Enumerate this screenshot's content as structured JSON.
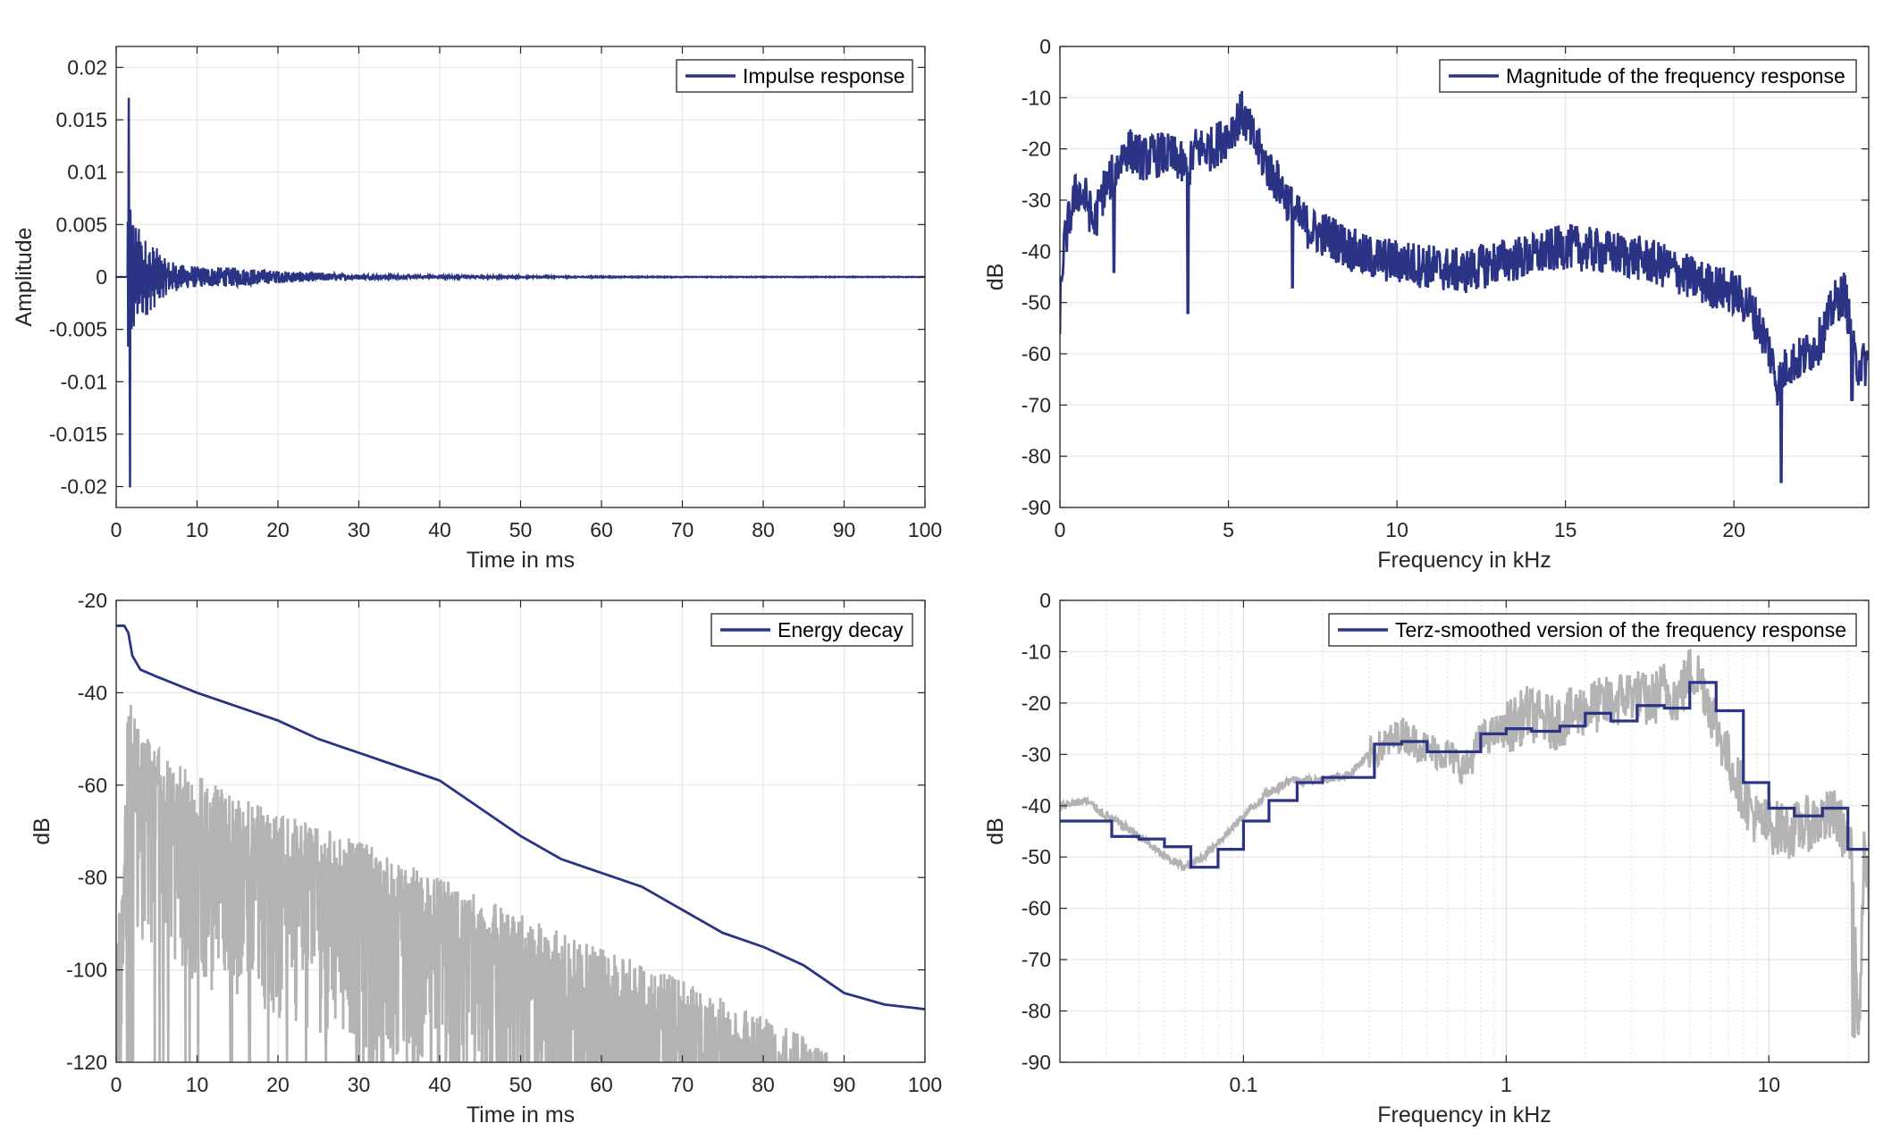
{
  "colors": {
    "main": "#2b3385",
    "gray": "#b3b3b3",
    "grid": "#e6e6e6",
    "axis": "#262626"
  },
  "chart_data": [
    {
      "type": "line",
      "xlabel": "Time in ms",
      "ylabel": "Amplitude",
      "xlim": [
        0,
        100
      ],
      "ylim": [
        -0.022,
        0.022
      ],
      "xticks": [
        0,
        10,
        20,
        30,
        40,
        50,
        60,
        70,
        80,
        90,
        100
      ],
      "yticks": [
        0.02,
        0.015,
        0.01,
        0.005,
        0,
        -0.005,
        -0.01,
        -0.015,
        -0.02
      ],
      "grid": true,
      "legend_position": "top-right",
      "series": [
        {
          "name": "Impulse response",
          "color": "#2b3385",
          "peaks_envelope": {
            "x": [
              1.5,
              1.8,
              2.2,
              3.0,
              4.0,
              5.0,
              6.0,
              8.0,
              10.0,
              15.0,
              20.0,
              25.0,
              30.0,
              40.0,
              50.0,
              70.0,
              100.0
            ],
            "y": [
              0.017,
              0.009,
              0.006,
              0.0045,
              0.0035,
              0.0028,
              0.0018,
              0.0012,
              0.001,
              0.0009,
              0.0006,
              0.0004,
              0.00025,
              0.00012,
              6e-05,
              3e-05,
              2e-05
            ]
          },
          "min_value": -0.02,
          "max_value": 0.017
        }
      ]
    },
    {
      "type": "line",
      "xlabel": "Frequency in kHz",
      "ylabel": "dB",
      "xlim": [
        0,
        24
      ],
      "ylim": [
        -90,
        0
      ],
      "xticks": [
        0,
        5,
        10,
        15,
        20
      ],
      "yticks": [
        0,
        -10,
        -20,
        -30,
        -40,
        -50,
        -60,
        -70,
        -80,
        -90
      ],
      "grid": true,
      "legend_position": "top-right",
      "series": [
        {
          "name": "Magnitude of the frequency response",
          "color": "#2b3385",
          "x": [
            0,
            0.1,
            0.3,
            0.5,
            0.8,
            1.0,
            1.3,
            1.6,
            1.8,
            2.0,
            2.5,
            3.0,
            3.5,
            3.8,
            4.0,
            4.5,
            5.0,
            5.4,
            5.8,
            6.2,
            6.6,
            7.0,
            7.5,
            8.0,
            9.0,
            10.0,
            11.0,
            12.0,
            13.0,
            14.0,
            15.0,
            16.0,
            17.0,
            18.0,
            19.0,
            20.0,
            20.5,
            21.0,
            21.3,
            21.6,
            22.0,
            22.5,
            23.0,
            23.3,
            23.6,
            24.0
          ],
          "y": [
            -52,
            -40,
            -33,
            -28,
            -30,
            -35,
            -28,
            -25,
            -22,
            -20,
            -22,
            -21,
            -22,
            -25,
            -20,
            -20,
            -17,
            -13,
            -19,
            -24,
            -28,
            -33,
            -36,
            -37,
            -41,
            -42,
            -43,
            -44,
            -42,
            -41,
            -39,
            -40,
            -41,
            -43,
            -46,
            -48,
            -51,
            -58,
            -66,
            -62,
            -61,
            -58,
            -50,
            -48,
            -62,
            -62
          ],
          "dips": [
            {
              "x": 3.8,
              "y": -52
            },
            {
              "x": 21.4,
              "y": -85
            },
            {
              "x": 23.5,
              "y": -69
            },
            {
              "x": 6.9,
              "y": -47
            },
            {
              "x": 1.6,
              "y": -44
            }
          ]
        }
      ]
    },
    {
      "type": "line",
      "xlabel": "Time in ms",
      "ylabel": "dB",
      "xlim": [
        0,
        100
      ],
      "ylim": [
        -120,
        -20
      ],
      "xticks": [
        0,
        10,
        20,
        30,
        40,
        50,
        60,
        70,
        80,
        90,
        100
      ],
      "yticks": [
        -20,
        -40,
        -60,
        -80,
        -100,
        -120
      ],
      "grid": true,
      "legend_position": "top-right",
      "series": [
        {
          "name": "Energy decay",
          "color": "#2b3385",
          "x": [
            0,
            1,
            1.5,
            2,
            3,
            5,
            10,
            15,
            20,
            25,
            30,
            35,
            40,
            45,
            50,
            55,
            60,
            65,
            70,
            75,
            80,
            85,
            90,
            95,
            100
          ],
          "y": [
            -25.5,
            -25.5,
            -27,
            -32,
            -35,
            -36.5,
            -40,
            -43,
            -46,
            -50,
            -53,
            -56,
            -59,
            -65,
            -71,
            -76,
            -79,
            -82,
            -87,
            -92,
            -95,
            -99,
            -105,
            -107.5,
            -108.5
          ]
        },
        {
          "color": "#b3b3b3",
          "envelope_top": {
            "x": [
              0,
              1,
              1.5,
              2,
              3,
              5,
              10,
              20,
              30,
              40,
              50,
              60,
              70,
              80,
              88
            ],
            "y": [
              -98,
              -70,
              -34,
              -42,
              -48,
              -52,
              -58,
              -66,
              -72,
              -80,
              -88,
              -95,
              -102,
              -110,
              -117
            ]
          },
          "floor": -120,
          "end_ms": 88
        }
      ]
    },
    {
      "type": "line",
      "xlabel": "Frequency in kHz",
      "ylabel": "dB",
      "xscale": "log",
      "xlim": [
        0.02,
        24
      ],
      "ylim": [
        -90,
        0
      ],
      "xticks": [
        0.1,
        1,
        10
      ],
      "xticklabels": [
        "0.1",
        "1",
        "10"
      ],
      "yticks": [
        0,
        -10,
        -20,
        -30,
        -40,
        -50,
        -60,
        -70,
        -80,
        -90
      ],
      "grid": true,
      "legend_position": "top-right",
      "series": [
        {
          "name": "Terz-smoothed version of the frequency response",
          "color": "#2b3385",
          "step": true,
          "x": [
            0.02,
            0.025,
            0.0315,
            0.04,
            0.05,
            0.063,
            0.08,
            0.1,
            0.125,
            0.16,
            0.2,
            0.25,
            0.315,
            0.4,
            0.5,
            0.63,
            0.8,
            1.0,
            1.25,
            1.6,
            2.0,
            2.5,
            3.15,
            4.0,
            5.0,
            6.3,
            8.0,
            10.0,
            12.5,
            16.0,
            20.0,
            24.0
          ],
          "y": [
            -43,
            -43,
            -46,
            -46.5,
            -48,
            -52,
            -48.5,
            -43,
            -39,
            -35.5,
            -34.5,
            -34.5,
            -28,
            -27.5,
            -29.5,
            -29.5,
            -26,
            -25,
            -25.5,
            -24.5,
            -22,
            -23.5,
            -20.5,
            -21,
            -16,
            -21.5,
            -35.5,
            -40.5,
            -42,
            -40.5,
            -48.5,
            -48.5
          ]
        },
        {
          "color": "#b3b3b3",
          "x": [
            0.02,
            0.025,
            0.03,
            0.04,
            0.05,
            0.06,
            0.07,
            0.08,
            0.1,
            0.12,
            0.15,
            0.2,
            0.25,
            0.3,
            0.4,
            0.5,
            0.6,
            0.7,
            0.8,
            1.0,
            1.2,
            1.5,
            2.0,
            2.5,
            3.0,
            3.5,
            4.0,
            4.5,
            5.0,
            5.5,
            6.0,
            7.0,
            8.0,
            9.0,
            10.0,
            12.0,
            15.0,
            18.0,
            20.0,
            21.0,
            22.0,
            23.0,
            24.0
          ],
          "y": [
            -40,
            -39,
            -42,
            -46,
            -50,
            -52,
            -50,
            -47,
            -42,
            -38,
            -35,
            -35,
            -34,
            -30,
            -26,
            -29,
            -30,
            -33,
            -27,
            -25,
            -22,
            -24,
            -21,
            -20,
            -18,
            -20,
            -17,
            -19,
            -14,
            -15,
            -21,
            -31,
            -38,
            -43,
            -44,
            -45,
            -43,
            -42,
            -47,
            -52,
            -85,
            -50,
            -57
          ]
        }
      ]
    }
  ]
}
